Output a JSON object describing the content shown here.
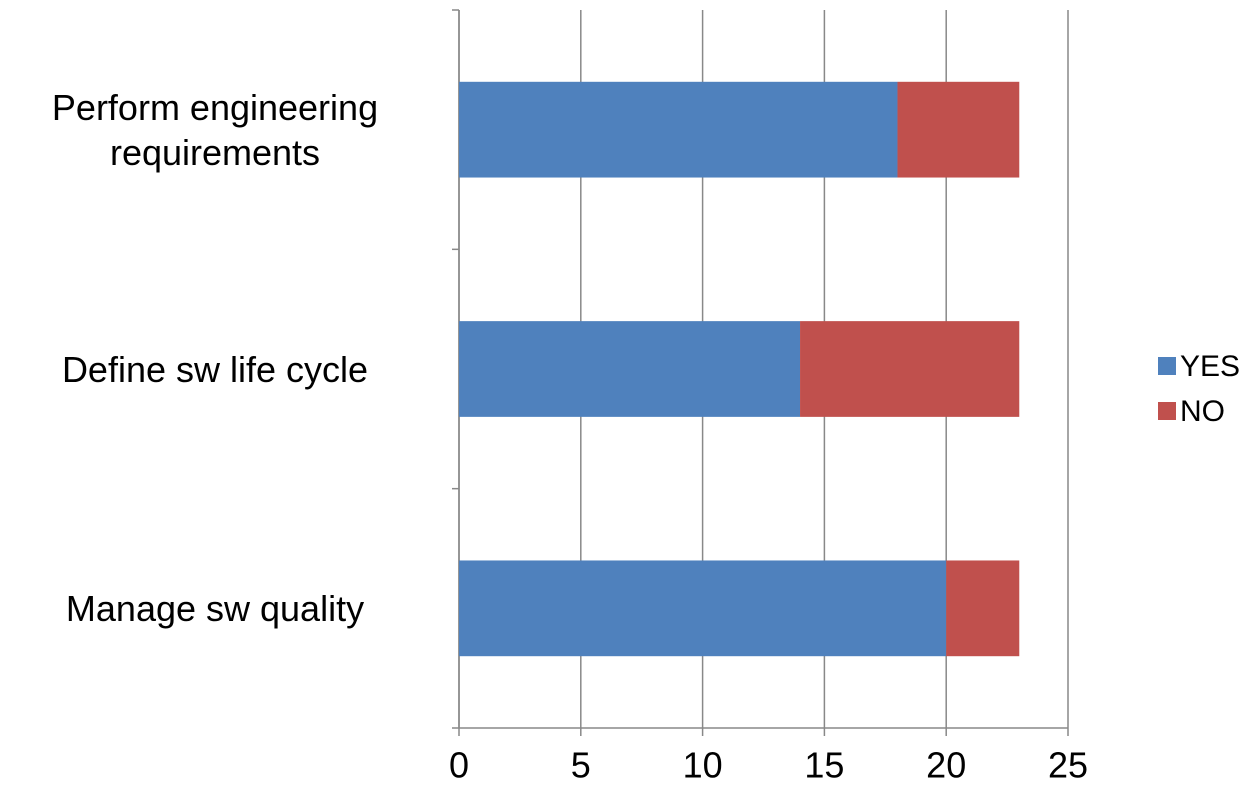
{
  "chart_data": {
    "type": "bar",
    "orientation": "horizontal",
    "stacked": true,
    "categories": [
      "Perform engineering requirements",
      "Define sw life cycle",
      "Manage sw quality"
    ],
    "series": [
      {
        "name": "YES",
        "color": "#4f81bd",
        "values": [
          18,
          14,
          20
        ]
      },
      {
        "name": "NO",
        "color": "#c0504d",
        "values": [
          5,
          9,
          3
        ]
      }
    ],
    "xlim": [
      0,
      25
    ],
    "xticks": [
      0,
      5,
      10,
      15,
      20,
      25
    ],
    "grid": true,
    "legend": "right"
  }
}
